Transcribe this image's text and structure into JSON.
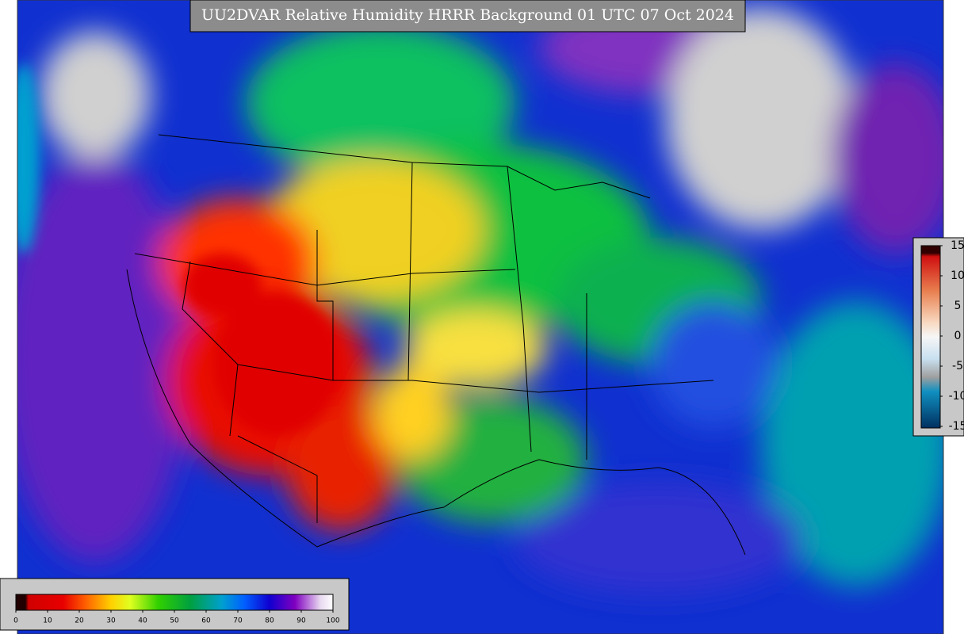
{
  "title": "UU2DVAR Relative Humidity HRRR Background  01 UTC 07 Oct 2024",
  "humidity_colorbar": {
    "ticks": [
      0,
      10,
      20,
      30,
      40,
      50,
      60,
      70,
      80,
      90,
      100
    ]
  },
  "difference_colorbar": {
    "ticks": [
      15,
      10,
      5,
      0,
      -5,
      -10,
      -15
    ]
  }
}
